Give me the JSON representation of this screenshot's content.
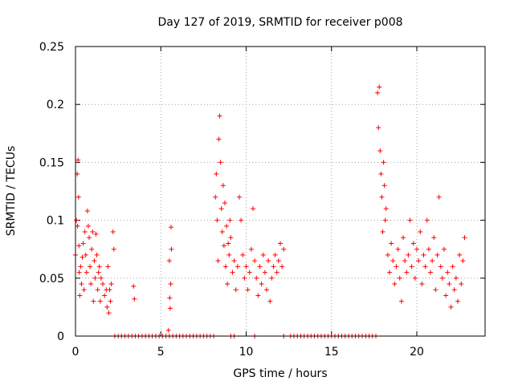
{
  "chart_data": {
    "type": "scatter",
    "title": "Day 127 of 2019, SRMTID for receiver p008",
    "xlabel": "GPS time / hours",
    "ylabel": "SRMTID / TECUs",
    "xlim": [
      0,
      24
    ],
    "ylim": [
      0,
      0.25
    ],
    "xticks": [
      0,
      5,
      10,
      15,
      20
    ],
    "xtick_labels": [
      "0",
      "5",
      "10",
      "15",
      "20"
    ],
    "yticks": [
      0,
      0.05,
      0.1,
      0.15,
      0.2,
      0.25
    ],
    "ytick_labels": [
      "0",
      "0.05",
      "0.1",
      "0.15",
      "0.2",
      "0.25"
    ],
    "grid": true,
    "marker": "+",
    "color": "#ff0000",
    "series": [
      {
        "name": "SRMTID",
        "points": [
          [
            0.0,
            0.07
          ],
          [
            0.05,
            0.1
          ],
          [
            0.1,
            0.14
          ],
          [
            0.12,
            0.095
          ],
          [
            0.15,
            0.152
          ],
          [
            0.18,
            0.12
          ],
          [
            0.2,
            0.078
          ],
          [
            0.22,
            0.055
          ],
          [
            0.25,
            0.035
          ],
          [
            0.3,
            0.06
          ],
          [
            0.35,
            0.045
          ],
          [
            0.4,
            0.068
          ],
          [
            0.45,
            0.08
          ],
          [
            0.5,
            0.04
          ],
          [
            0.55,
            0.09
          ],
          [
            0.6,
            0.07
          ],
          [
            0.65,
            0.055
          ],
          [
            0.7,
            0.108
          ],
          [
            0.75,
            0.095
          ],
          [
            0.8,
            0.085
          ],
          [
            0.85,
            0.06
          ],
          [
            0.9,
            0.045
          ],
          [
            0.95,
            0.075
          ],
          [
            1.0,
            0.09
          ],
          [
            1.05,
            0.03
          ],
          [
            1.1,
            0.065
          ],
          [
            1.15,
            0.05
          ],
          [
            1.2,
            0.088
          ],
          [
            1.25,
            0.07
          ],
          [
            1.3,
            0.04
          ],
          [
            1.35,
            0.055
          ],
          [
            1.4,
            0.06
          ],
          [
            1.45,
            0.03
          ],
          [
            1.5,
            0.05
          ],
          [
            1.6,
            0.045
          ],
          [
            1.7,
            0.035
          ],
          [
            1.8,
            0.04
          ],
          [
            1.85,
            0.025
          ],
          [
            1.9,
            0.06
          ],
          [
            1.95,
            0.02
          ],
          [
            2.0,
            0.04
          ],
          [
            2.05,
            0.03
          ],
          [
            2.1,
            0.045
          ],
          [
            2.2,
            0.09
          ],
          [
            2.25,
            0.075
          ],
          [
            2.3,
            0.0
          ],
          [
            2.5,
            0.0
          ],
          [
            2.7,
            0.0
          ],
          [
            2.9,
            0.0
          ],
          [
            3.1,
            0.0
          ],
          [
            3.3,
            0.0
          ],
          [
            3.5,
            0.0
          ],
          [
            3.7,
            0.0
          ],
          [
            3.9,
            0.0
          ],
          [
            4.1,
            0.0
          ],
          [
            4.3,
            0.0
          ],
          [
            4.5,
            0.0
          ],
          [
            4.7,
            0.0
          ],
          [
            4.9,
            0.0
          ],
          [
            5.1,
            0.0
          ],
          [
            5.3,
            0.0
          ],
          [
            5.5,
            0.0
          ],
          [
            5.7,
            0.0
          ],
          [
            5.9,
            0.0
          ],
          [
            6.1,
            0.0
          ],
          [
            6.3,
            0.0
          ],
          [
            6.5,
            0.0
          ],
          [
            6.7,
            0.0
          ],
          [
            6.9,
            0.0
          ],
          [
            7.1,
            0.0
          ],
          [
            7.3,
            0.0
          ],
          [
            7.5,
            0.0
          ],
          [
            7.7,
            0.0
          ],
          [
            7.9,
            0.0
          ],
          [
            8.1,
            0.0
          ],
          [
            3.4,
            0.043
          ],
          [
            3.45,
            0.032
          ],
          [
            5.45,
            0.005
          ],
          [
            5.5,
            0.065
          ],
          [
            5.52,
            0.033
          ],
          [
            5.55,
            0.024
          ],
          [
            5.58,
            0.045
          ],
          [
            5.6,
            0.094
          ],
          [
            5.62,
            0.075
          ],
          [
            9.1,
            0.0
          ],
          [
            9.3,
            0.0
          ],
          [
            10.5,
            0.0
          ],
          [
            12.2,
            0.0
          ],
          [
            12.6,
            0.0
          ],
          [
            12.8,
            0.0
          ],
          [
            13.0,
            0.0
          ],
          [
            13.2,
            0.0
          ],
          [
            13.4,
            0.0
          ],
          [
            13.6,
            0.0
          ],
          [
            13.8,
            0.0
          ],
          [
            14.0,
            0.0
          ],
          [
            14.2,
            0.0
          ],
          [
            14.4,
            0.0
          ],
          [
            14.6,
            0.0
          ],
          [
            14.8,
            0.0
          ],
          [
            15.0,
            0.0
          ],
          [
            15.2,
            0.0
          ],
          [
            15.4,
            0.0
          ],
          [
            15.6,
            0.0
          ],
          [
            15.8,
            0.0
          ],
          [
            16.0,
            0.0
          ],
          [
            16.2,
            0.0
          ],
          [
            16.4,
            0.0
          ],
          [
            16.6,
            0.0
          ],
          [
            16.8,
            0.0
          ],
          [
            17.0,
            0.0
          ],
          [
            17.2,
            0.0
          ],
          [
            17.4,
            0.0
          ],
          [
            17.6,
            0.0
          ],
          [
            8.2,
            0.12
          ],
          [
            8.25,
            0.14
          ],
          [
            8.3,
            0.1
          ],
          [
            8.35,
            0.065
          ],
          [
            8.4,
            0.17
          ],
          [
            8.45,
            0.19
          ],
          [
            8.5,
            0.15
          ],
          [
            8.55,
            0.11
          ],
          [
            8.6,
            0.09
          ],
          [
            8.65,
            0.13
          ],
          [
            8.7,
            0.078
          ],
          [
            8.75,
            0.115
          ],
          [
            8.8,
            0.06
          ],
          [
            8.85,
            0.095
          ],
          [
            8.9,
            0.045
          ],
          [
            8.95,
            0.08
          ],
          [
            9.0,
            0.07
          ],
          [
            9.05,
            0.1
          ],
          [
            9.1,
            0.085
          ],
          [
            9.2,
            0.055
          ],
          [
            9.3,
            0.065
          ],
          [
            9.4,
            0.04
          ],
          [
            9.5,
            0.06
          ],
          [
            9.6,
            0.12
          ],
          [
            9.7,
            0.1
          ],
          [
            9.8,
            0.07
          ],
          [
            9.9,
            0.05
          ],
          [
            10.0,
            0.06
          ],
          [
            10.1,
            0.04
          ],
          [
            10.2,
            0.055
          ],
          [
            10.3,
            0.075
          ],
          [
            10.4,
            0.11
          ],
          [
            10.5,
            0.065
          ],
          [
            10.6,
            0.05
          ],
          [
            10.7,
            0.035
          ],
          [
            10.8,
            0.06
          ],
          [
            10.9,
            0.045
          ],
          [
            11.0,
            0.07
          ],
          [
            11.1,
            0.055
          ],
          [
            11.2,
            0.04
          ],
          [
            11.3,
            0.065
          ],
          [
            11.4,
            0.03
          ],
          [
            11.5,
            0.05
          ],
          [
            11.6,
            0.06
          ],
          [
            11.7,
            0.07
          ],
          [
            11.8,
            0.055
          ],
          [
            11.9,
            0.065
          ],
          [
            12.0,
            0.08
          ],
          [
            12.1,
            0.06
          ],
          [
            12.2,
            0.075
          ],
          [
            17.7,
            0.21
          ],
          [
            17.75,
            0.18
          ],
          [
            17.8,
            0.215
          ],
          [
            17.85,
            0.16
          ],
          [
            17.9,
            0.14
          ],
          [
            17.95,
            0.12
          ],
          [
            18.0,
            0.09
          ],
          [
            18.05,
            0.15
          ],
          [
            18.1,
            0.13
          ],
          [
            18.15,
            0.1
          ],
          [
            18.2,
            0.11
          ],
          [
            18.3,
            0.07
          ],
          [
            18.4,
            0.055
          ],
          [
            18.5,
            0.08
          ],
          [
            18.6,
            0.065
          ],
          [
            18.7,
            0.045
          ],
          [
            18.8,
            0.06
          ],
          [
            18.9,
            0.075
          ],
          [
            19.0,
            0.05
          ],
          [
            19.1,
            0.03
          ],
          [
            19.2,
            0.085
          ],
          [
            19.3,
            0.065
          ],
          [
            19.4,
            0.055
          ],
          [
            19.5,
            0.07
          ],
          [
            19.6,
            0.1
          ],
          [
            19.7,
            0.06
          ],
          [
            19.8,
            0.08
          ],
          [
            19.9,
            0.05
          ],
          [
            20.0,
            0.075
          ],
          [
            20.1,
            0.065
          ],
          [
            20.2,
            0.09
          ],
          [
            20.3,
            0.045
          ],
          [
            20.4,
            0.07
          ],
          [
            20.5,
            0.06
          ],
          [
            20.6,
            0.1
          ],
          [
            20.7,
            0.075
          ],
          [
            20.8,
            0.055
          ],
          [
            20.9,
            0.065
          ],
          [
            21.0,
            0.085
          ],
          [
            21.1,
            0.04
          ],
          [
            21.2,
            0.07
          ],
          [
            21.3,
            0.12
          ],
          [
            21.4,
            0.06
          ],
          [
            21.5,
            0.05
          ],
          [
            21.6,
            0.075
          ],
          [
            21.7,
            0.035
          ],
          [
            21.8,
            0.055
          ],
          [
            21.9,
            0.045
          ],
          [
            22.0,
            0.025
          ],
          [
            22.1,
            0.06
          ],
          [
            22.2,
            0.04
          ],
          [
            22.3,
            0.05
          ],
          [
            22.4,
            0.03
          ],
          [
            22.5,
            0.07
          ],
          [
            22.6,
            0.045
          ],
          [
            22.7,
            0.065
          ],
          [
            22.8,
            0.085
          ]
        ]
      }
    ]
  }
}
